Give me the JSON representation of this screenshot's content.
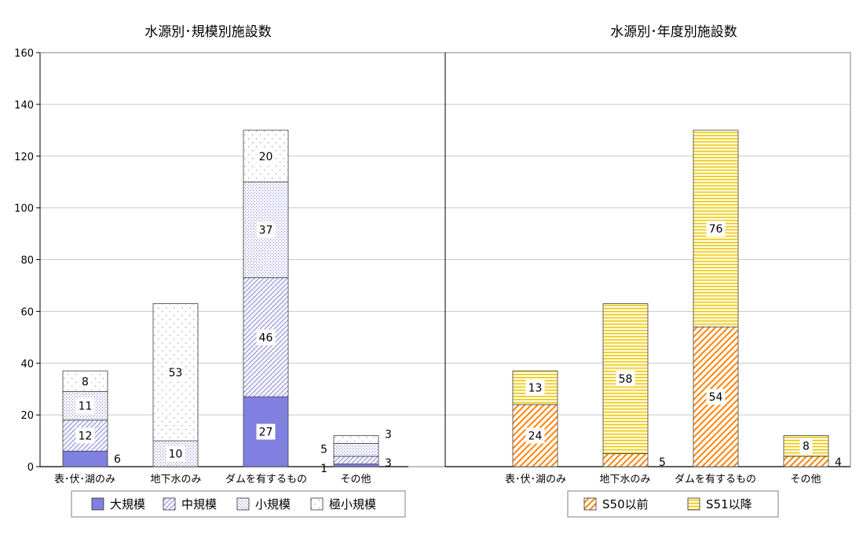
{
  "chart_data": [
    {
      "type": "bar",
      "stacked": true,
      "title": "水源別･規模別施設数",
      "categories": [
        "表･伏･湖のみ",
        "地下水のみ",
        "ダムを有するもの",
        "その他"
      ],
      "series": [
        {
          "name": "大規模",
          "values": [
            6,
            0,
            27,
            1
          ],
          "value_labels": [
            "6",
            "",
            "27",
            "1"
          ]
        },
        {
          "name": "中規模",
          "values": [
            12,
            0,
            46,
            3
          ],
          "value_labels": [
            "12",
            "",
            "46",
            "3"
          ]
        },
        {
          "name": "小規模",
          "values": [
            11,
            10,
            37,
            5
          ],
          "value_labels": [
            "11",
            "10",
            "37",
            "5"
          ]
        },
        {
          "name": "極小規模",
          "values": [
            8,
            53,
            20,
            3
          ],
          "value_labels": [
            "8",
            "53",
            "20",
            "3"
          ]
        }
      ],
      "ylim": [
        0,
        160
      ],
      "yticks": [
        "0",
        "20",
        "40",
        "60",
        "80",
        "100",
        "120",
        "140",
        "160"
      ],
      "grid": true,
      "legend": "bottom"
    },
    {
      "type": "bar",
      "stacked": true,
      "title": "水源別･年度別施設数",
      "categories": [
        "表･伏･湖のみ",
        "地下水のみ",
        "ダムを有するもの",
        "その他"
      ],
      "series": [
        {
          "name": "S50以前",
          "values": [
            24,
            5,
            54,
            4
          ],
          "value_labels": [
            "24",
            "5",
            "54",
            "4"
          ]
        },
        {
          "name": "S51以降",
          "values": [
            13,
            58,
            76,
            8
          ],
          "value_labels": [
            "13",
            "58",
            "76",
            "8"
          ]
        }
      ],
      "ylim": [
        0,
        160
      ],
      "grid": true,
      "legend": "bottom"
    }
  ],
  "colors": {
    "large": "#8080e0",
    "medium_pattern": "#8a8ad8",
    "small_pattern": "#8a8ad8",
    "tiny_pattern": "#9a9ad8",
    "s50_hatch": "#ff8c1a",
    "s51_line": "#e8c000",
    "s51_fill": "#fff8d0",
    "grid": "#c8c8c8",
    "frame": "#808080"
  }
}
